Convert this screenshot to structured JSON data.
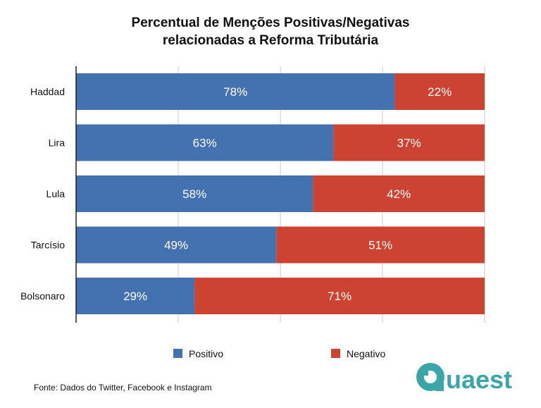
{
  "chart_data": {
    "type": "bar",
    "orientation": "horizontal",
    "stacked": true,
    "title_line1": "Percentual de Menções Positivas/Negativas",
    "title_line2": "relacionadas a Reforma Tributária",
    "categories": [
      "Haddad",
      "Lira",
      "Lula",
      "Tarcísio",
      "Bolsonaro"
    ],
    "series": [
      {
        "name": "Positivo",
        "color": "#4472b1",
        "values": [
          78,
          63,
          58,
          49,
          29
        ],
        "labels": [
          "78%",
          "63%",
          "58%",
          "49%",
          "29%"
        ]
      },
      {
        "name": "Negativo",
        "color": "#cc4331",
        "values": [
          22,
          37,
          42,
          51,
          71
        ],
        "labels": [
          "22%",
          "37%",
          "42%",
          "51%",
          "71%"
        ]
      }
    ],
    "xlim": [
      0,
      100
    ],
    "grid": true,
    "legend_position": "bottom"
  },
  "footer": {
    "source": "Fonte: Dados do Twitter, Facebook e Instagram",
    "logo_text": "Quaest",
    "logo_color": "#3aa6a8"
  }
}
